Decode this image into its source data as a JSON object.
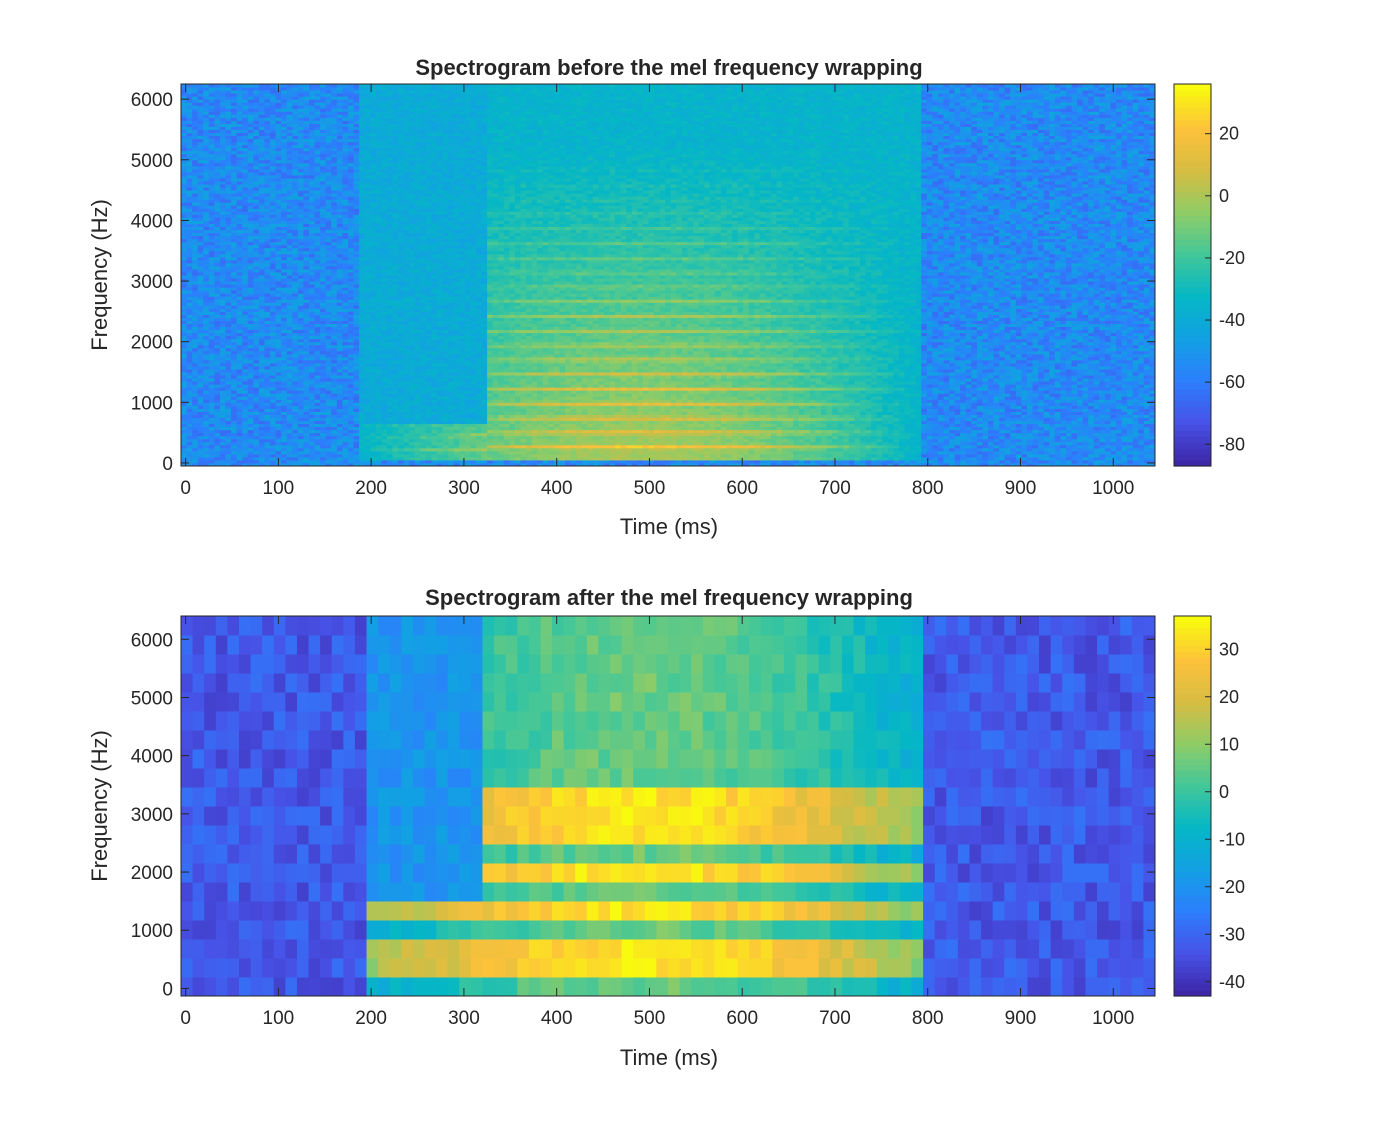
{
  "chart_data": [
    {
      "type": "heatmap",
      "title": "Spectrogram before the mel frequency wrapping",
      "xlabel": "Time (ms)",
      "ylabel": "Frequency (Hz)",
      "xlim": [
        -5,
        1045
      ],
      "ylim": [
        -50,
        6250
      ],
      "xticks": [
        0,
        100,
        200,
        300,
        400,
        500,
        600,
        700,
        800,
        900,
        1000
      ],
      "yticks": [
        0,
        1000,
        2000,
        3000,
        4000,
        5000,
        6000
      ],
      "colormap": "parula",
      "colorbar": {
        "clim": [
          -87,
          36
        ],
        "ticks": [
          -80,
          -60,
          -40,
          -20,
          0,
          20
        ]
      },
      "grid": false,
      "signal": {
        "voiced_segments_ms": [
          [
            185,
            320
          ],
          [
            320,
            790
          ]
        ],
        "fundamental_hz_start": 200,
        "fundamental_hz_end": 280,
        "harmonic_spacing_hz": 240,
        "background_level_db": -55,
        "peak_level_db": 30
      }
    },
    {
      "type": "heatmap",
      "title": "Spectrogram after the mel frequency wrapping",
      "xlabel": "Time (ms)",
      "ylabel": "Frequency (Hz)",
      "xlim": [
        -5,
        1045
      ],
      "ylim": [
        -130,
        6400
      ],
      "xticks": [
        0,
        100,
        200,
        300,
        400,
        500,
        600,
        700,
        800,
        900,
        1000
      ],
      "yticks": [
        0,
        1000,
        2000,
        3000,
        4000,
        5000,
        6000
      ],
      "colormap": "parula",
      "colorbar": {
        "clim": [
          -43,
          37
        ],
        "ticks": [
          -40,
          -30,
          -20,
          -10,
          0,
          10,
          20,
          30
        ]
      },
      "grid": false,
      "signal": {
        "time_bin_ms": 12.5,
        "mel_bands": 20,
        "background_level_db": -33,
        "peak_level_db": 34,
        "bright_bands_hz": [
          [
            150,
            850
          ],
          [
            1150,
            1500
          ],
          [
            1800,
            2150
          ],
          [
            2500,
            3400
          ]
        ],
        "voiced_segments_ms": [
          [
            185,
            320
          ],
          [
            320,
            790
          ]
        ]
      }
    }
  ]
}
